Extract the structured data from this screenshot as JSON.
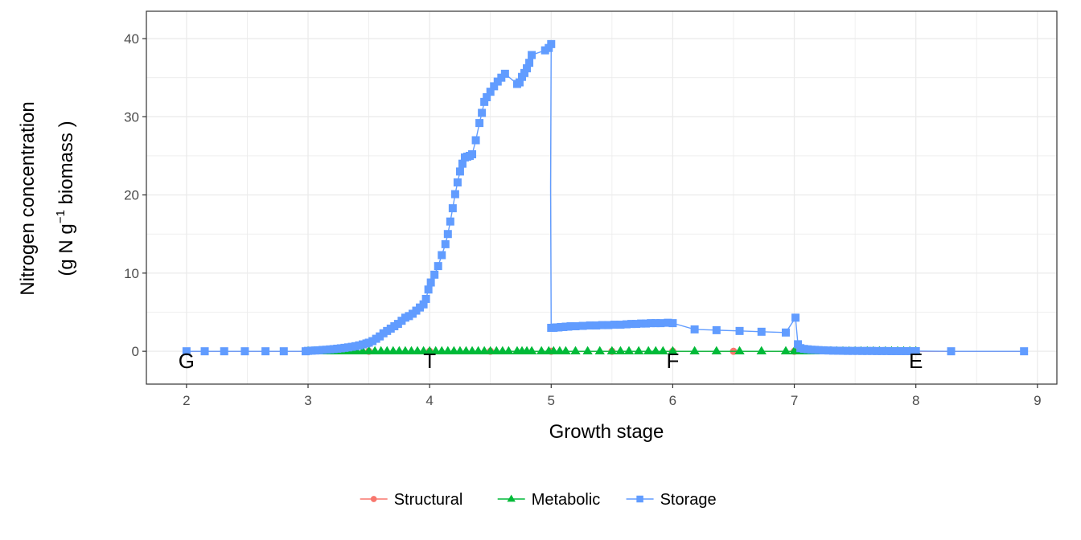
{
  "chart_data": {
    "type": "line",
    "xlabel": "Growth stage",
    "ylabel_line1": "Nitrogen concentration",
    "ylabel_line2_prefix": "(g N  g",
    "ylabel_line2_sup": "−1",
    "ylabel_line2_suffix": " biomass )",
    "xlim": [
      1.67,
      9.16
    ],
    "ylim": [
      -4.2,
      43.5
    ],
    "x_ticks": [
      2,
      3,
      4,
      5,
      6,
      7,
      8,
      9
    ],
    "y_ticks": [
      0,
      10,
      20,
      30,
      40
    ],
    "x_tick_labels": [
      "2",
      "3",
      "4",
      "5",
      "6",
      "7",
      "8",
      "9"
    ],
    "y_tick_labels": [
      "0",
      "10",
      "20",
      "30",
      "40"
    ],
    "grid": true,
    "legend_position": "bottom",
    "stage_labels": [
      {
        "text": "G",
        "x": 2.0,
        "y": -1.2
      },
      {
        "text": "T",
        "x": 4.0,
        "y": -1.2
      },
      {
        "text": "F",
        "x": 6.0,
        "y": -1.2
      },
      {
        "text": "E",
        "x": 8.0,
        "y": -1.2
      }
    ],
    "series": [
      {
        "name": "Structural",
        "color": "#F8766D",
        "marker": "circle",
        "x": [
          2.0,
          2.15,
          2.31,
          2.48,
          2.65,
          2.8,
          3.0,
          3.5,
          4.0,
          4.5,
          5.0,
          5.5,
          6.0,
          6.5,
          7.0,
          7.5,
          8.0,
          8.29,
          8.89
        ],
        "y": [
          0,
          0,
          0,
          0,
          0,
          0,
          0,
          0,
          0,
          0,
          0,
          0,
          0,
          0,
          0,
          0,
          0,
          0,
          0
        ]
      },
      {
        "name": "Metabolic",
        "color": "#00BA38",
        "marker": "triangle",
        "x": [
          3.0,
          3.05,
          3.1,
          3.15,
          3.2,
          3.25,
          3.3,
          3.35,
          3.4,
          3.45,
          3.5,
          3.55,
          3.6,
          3.65,
          3.7,
          3.75,
          3.8,
          3.85,
          3.9,
          3.95,
          4.0,
          4.05,
          4.1,
          4.15,
          4.2,
          4.25,
          4.3,
          4.35,
          4.4,
          4.45,
          4.5,
          4.55,
          4.6,
          4.65,
          4.72,
          4.76,
          4.8,
          4.84,
          4.92,
          4.98,
          5.02,
          5.07,
          5.12,
          5.2,
          5.3,
          5.4,
          5.5,
          5.57,
          5.64,
          5.72,
          5.8,
          5.86,
          5.92,
          6.0,
          6.18,
          6.36,
          6.55,
          6.73,
          6.93,
          7.0,
          7.05,
          7.1,
          7.15,
          7.2,
          7.25,
          7.3,
          7.35,
          7.4,
          7.45,
          7.5,
          7.55,
          7.6,
          7.65,
          7.7,
          7.75,
          7.8,
          7.85,
          7.9,
          7.95,
          8.0
        ],
        "y": [
          0,
          0,
          0,
          0,
          0,
          0,
          0,
          0,
          0,
          0,
          0,
          0,
          0,
          0,
          0,
          0,
          0,
          0,
          0,
          0,
          0,
          0,
          0,
          0,
          0,
          0,
          0,
          0,
          0,
          0,
          0,
          0,
          0,
          0,
          0,
          0,
          0,
          0,
          0,
          0,
          0,
          0,
          0,
          0,
          0,
          0,
          0,
          0,
          0,
          0,
          0,
          0,
          0,
          0,
          0,
          0,
          0,
          0,
          0,
          0,
          0,
          0,
          0,
          0,
          0,
          0,
          0,
          0,
          0,
          0,
          0,
          0,
          0,
          0,
          0,
          0,
          0,
          0,
          0,
          0
        ]
      },
      {
        "name": "Storage",
        "color": "#619CFF",
        "marker": "square",
        "x": [
          2.0,
          2.15,
          2.31,
          2.48,
          2.65,
          2.8,
          2.98,
          3.0,
          3.03,
          3.06,
          3.09,
          3.12,
          3.15,
          3.18,
          3.21,
          3.24,
          3.27,
          3.3,
          3.33,
          3.36,
          3.39,
          3.42,
          3.45,
          3.48,
          3.5,
          3.53,
          3.56,
          3.59,
          3.62,
          3.65,
          3.68,
          3.71,
          3.74,
          3.77,
          3.8,
          3.83,
          3.86,
          3.89,
          3.92,
          3.95,
          3.97,
          3.99,
          4.01,
          4.04,
          4.07,
          4.1,
          4.13,
          4.15,
          4.17,
          4.19,
          4.21,
          4.23,
          4.25,
          4.27,
          4.29,
          4.31,
          4.33,
          4.35,
          4.38,
          4.41,
          4.43,
          4.45,
          4.47,
          4.5,
          4.53,
          4.56,
          4.59,
          4.62,
          4.72,
          4.74,
          4.76,
          4.78,
          4.8,
          4.82,
          4.84,
          4.95,
          4.98,
          5.0,
          4.995,
          5.0,
          5.02,
          5.04,
          5.06,
          5.08,
          5.1,
          5.12,
          5.14,
          5.16,
          5.2,
          5.26,
          5.32,
          5.37,
          5.42,
          5.47,
          5.52,
          5.57,
          5.62,
          5.66,
          5.7,
          5.74,
          5.78,
          5.82,
          5.86,
          5.9,
          5.96,
          6.0,
          6.18,
          6.36,
          6.55,
          6.73,
          6.93,
          7.01,
          7.03,
          7.05,
          7.08,
          7.11,
          7.14,
          7.17,
          7.2,
          7.24,
          7.28,
          7.32,
          7.36,
          7.4,
          7.44,
          7.48,
          7.52,
          7.56,
          7.6,
          7.64,
          7.68,
          7.72,
          7.76,
          7.8,
          7.84,
          7.88,
          7.92,
          7.96,
          8.0,
          8.29,
          8.89
        ],
        "y": [
          0,
          0,
          0,
          0,
          0,
          0,
          0,
          0.05,
          0.08,
          0.1,
          0.13,
          0.17,
          0.2,
          0.24,
          0.28,
          0.33,
          0.38,
          0.44,
          0.5,
          0.57,
          0.65,
          0.75,
          0.88,
          1.0,
          1.1,
          1.3,
          1.6,
          1.9,
          2.3,
          2.6,
          2.9,
          3.2,
          3.5,
          3.9,
          4.3,
          4.5,
          4.8,
          5.2,
          5.6,
          6.0,
          6.7,
          7.9,
          8.8,
          9.8,
          10.9,
          12.3,
          13.7,
          15.0,
          16.6,
          18.3,
          20.1,
          21.6,
          23.0,
          24.0,
          24.8,
          24.9,
          25.0,
          25.2,
          27.0,
          29.2,
          30.5,
          31.9,
          32.5,
          33.2,
          33.9,
          34.5,
          35.0,
          35.5,
          34.2,
          34.4,
          35.1,
          35.6,
          36.2,
          36.9,
          37.9,
          38.5,
          38.8,
          39.3,
          21.0,
          3.0,
          3.0,
          3.05,
          3.05,
          3.1,
          3.1,
          3.15,
          3.15,
          3.2,
          3.2,
          3.25,
          3.3,
          3.3,
          3.35,
          3.35,
          3.4,
          3.4,
          3.45,
          3.5,
          3.5,
          3.55,
          3.55,
          3.6,
          3.6,
          3.6,
          3.65,
          3.6,
          2.8,
          2.7,
          2.6,
          2.5,
          2.4,
          4.3,
          0.9,
          0.4,
          0.3,
          0.25,
          0.2,
          0.18,
          0.15,
          0.12,
          0.1,
          0.08,
          0.07,
          0.06,
          0.05,
          0.05,
          0.05,
          0.04,
          0.04,
          0.04,
          0.03,
          0.03,
          0.03,
          0.02,
          0.02,
          0.02,
          0.02,
          0.02,
          0.02,
          0,
          0
        ]
      }
    ]
  }
}
